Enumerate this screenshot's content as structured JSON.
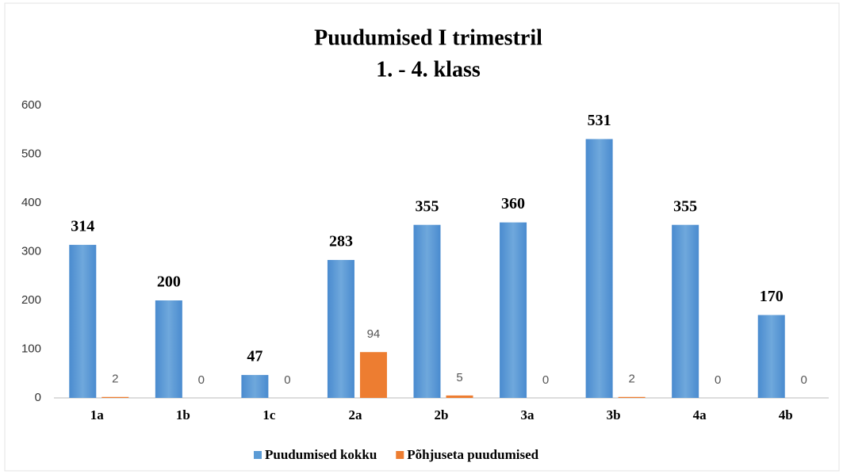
{
  "chart_data": {
    "type": "bar",
    "title": "Puudumised I trimestril",
    "subtitle": "1. - 4. klass",
    "categories": [
      "1a",
      "1b",
      "1c",
      "2a",
      "2b",
      "3a",
      "3b",
      "4a",
      "4b"
    ],
    "series": [
      {
        "name": "Puudumised kokku",
        "color": "#5b9bd5",
        "values": [
          314,
          200,
          47,
          283,
          355,
          360,
          531,
          355,
          170
        ]
      },
      {
        "name": "Põhjuseta puudumised",
        "color": "#ed7d31",
        "values": [
          2,
          0,
          0,
          94,
          5,
          0,
          2,
          0,
          0
        ]
      }
    ],
    "ylim": [
      0,
      600
    ],
    "yticks": [
      0,
      100,
      200,
      300,
      400,
      500,
      600
    ],
    "grid": false,
    "legend": "bottom"
  }
}
